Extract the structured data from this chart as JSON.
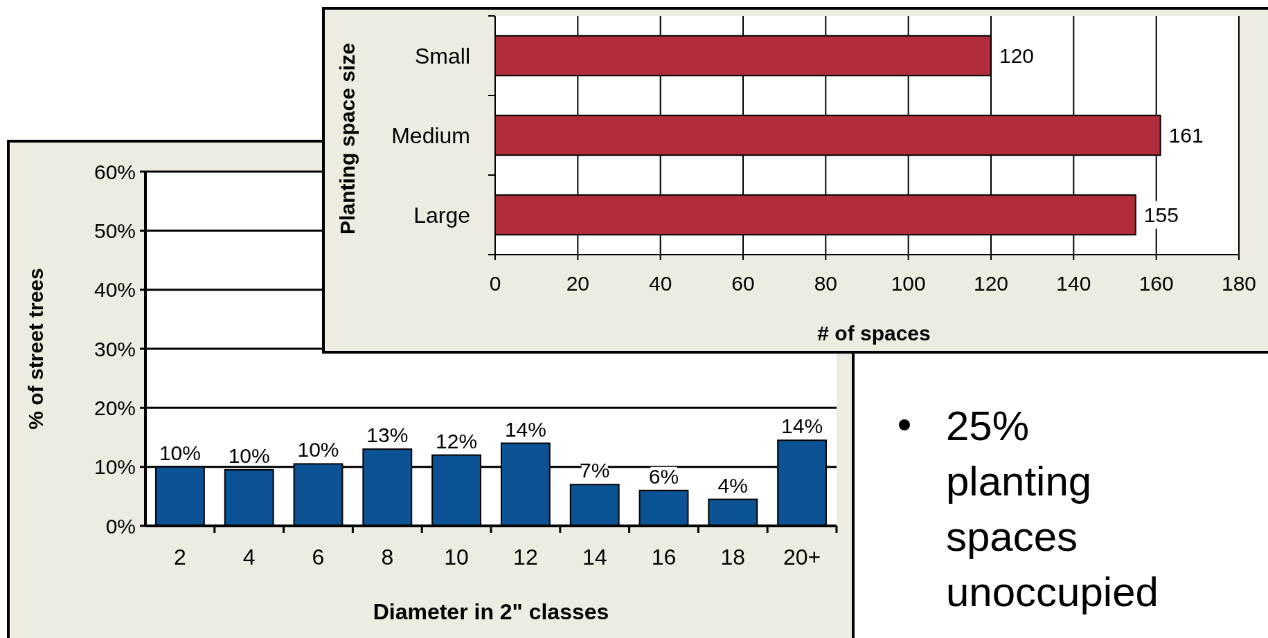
{
  "chart_data": [
    {
      "type": "bar",
      "categories": [
        "2",
        "4",
        "6",
        "8",
        "10",
        "12",
        "14",
        "16",
        "18",
        "20+"
      ],
      "values": [
        10,
        9.5,
        10.5,
        13,
        12,
        14,
        7,
        6,
        4.5,
        14.5
      ],
      "value_labels": [
        "10%",
        "10%",
        "10%",
        "13%",
        "12%",
        "14%",
        "7%",
        "6%",
        "4%",
        "14%"
      ],
      "color": "#0b5394",
      "xlabel": "Diameter in 2\" classes",
      "ylabel": "% of street trees",
      "ylim": [
        0,
        60
      ],
      "yticks": [
        {
          "value": 0,
          "label": "0%"
        },
        {
          "value": 10,
          "label": "10%"
        },
        {
          "value": 20,
          "label": "20%"
        },
        {
          "value": 30,
          "label": "30%"
        },
        {
          "value": 40,
          "label": "40%"
        },
        {
          "value": 50,
          "label": "50%"
        },
        {
          "value": 60,
          "label": "60%"
        }
      ],
      "grid": "y"
    },
    {
      "type": "bar",
      "orientation": "horizontal",
      "categories": [
        "Small",
        "Medium",
        "Large"
      ],
      "values": [
        120,
        161,
        155
      ],
      "color": "#b22d3b",
      "xlabel": "# of spaces",
      "ylabel": "Planting space size",
      "xlim": [
        0,
        180
      ],
      "xticks": [
        0,
        20,
        40,
        60,
        80,
        100,
        120,
        140,
        160,
        180
      ],
      "grid": "x",
      "data_labels": true
    },
    {
      "type": "other",
      "annotations": [
        "25% planting spaces unoccupied"
      ]
    }
  ]
}
